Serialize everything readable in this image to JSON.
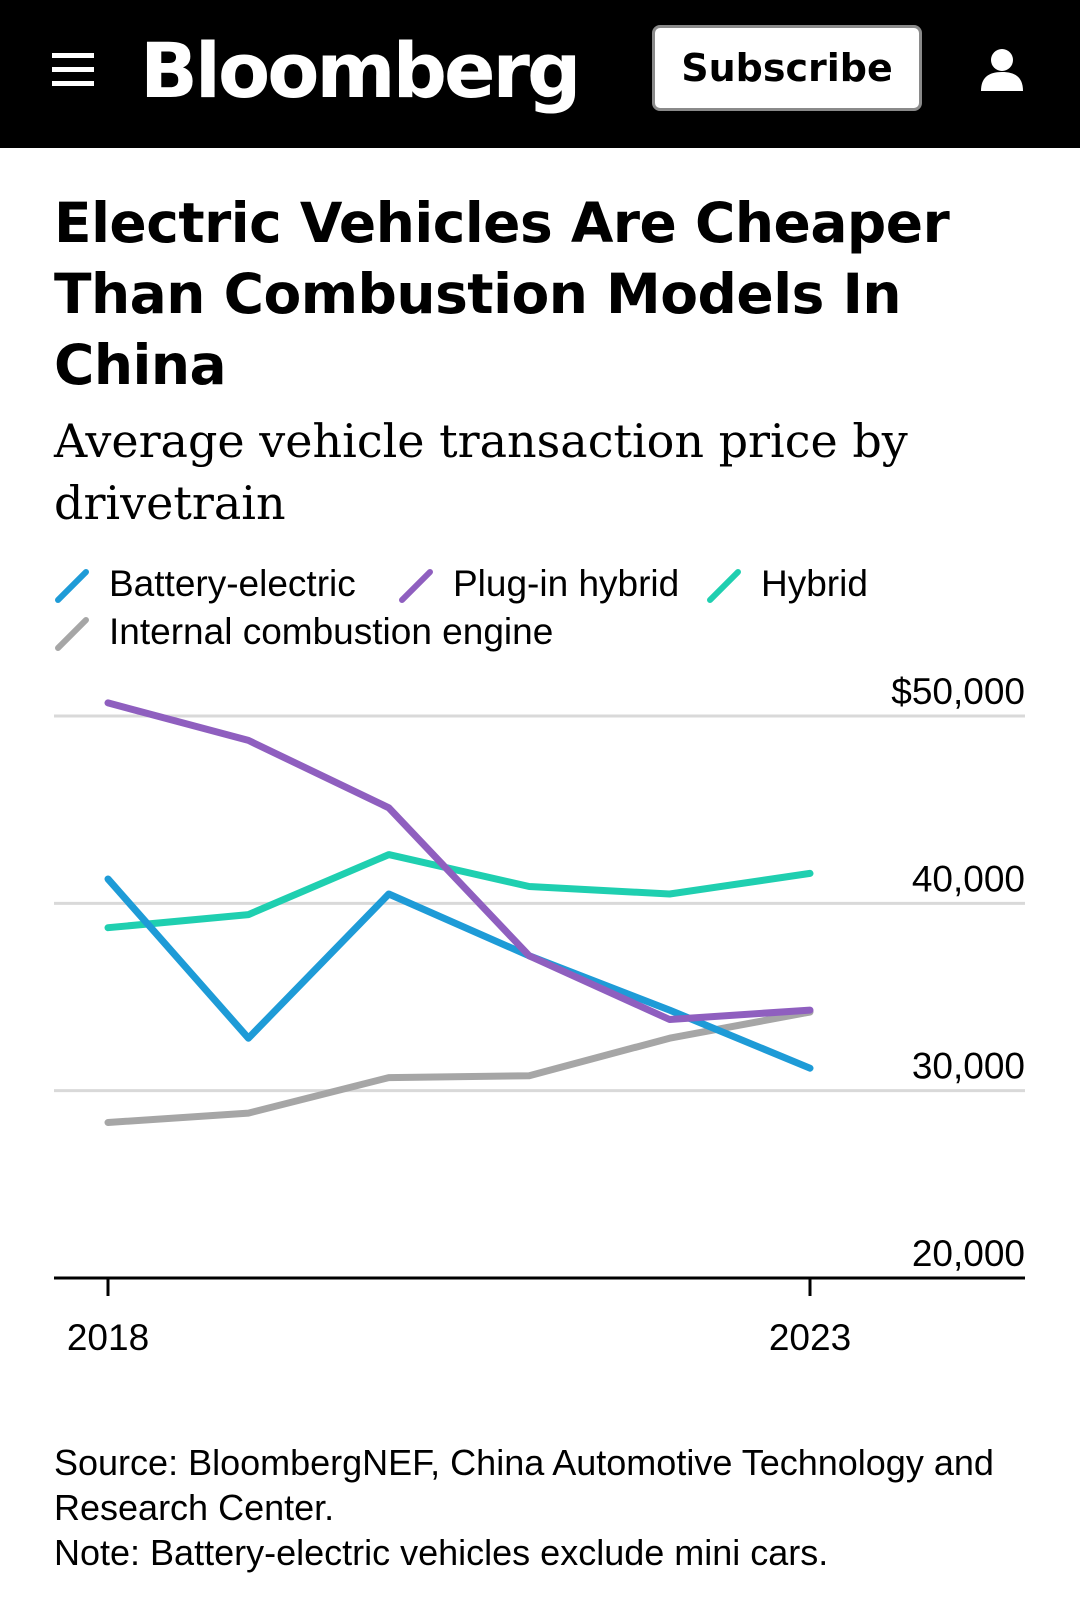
{
  "header": {
    "brand": "Bloomberg",
    "subscribe_label": "Subscribe"
  },
  "article": {
    "title": "Electric Vehicles Are Cheaper Than Combustion Models In China",
    "subtitle": "Average vehicle transaction price by drivetrain",
    "source": "Source: BloombergNEF, China Automotive Technology and Research Center.",
    "note": "Note: Battery-electric vehicles exclude mini cars."
  },
  "chart_data": {
    "type": "line",
    "x": [
      2018,
      2019,
      2020,
      2021,
      2022,
      2023
    ],
    "x_tick_labels": [
      "2018",
      "2023"
    ],
    "y_tick_labels": [
      "$50,000",
      "40,000",
      "30,000",
      "20,000"
    ],
    "y_ticks": [
      50000,
      40000,
      30000,
      20000
    ],
    "ylim": [
      20000,
      50000
    ],
    "grid": true,
    "legend_position": "top",
    "series": [
      {
        "name": "Battery-electric",
        "color": "#1e9bd7",
        "values": [
          41300,
          32800,
          40500,
          37200,
          34300,
          31200
        ]
      },
      {
        "name": "Plug-in hybrid",
        "color": "#8f5fbf",
        "values": [
          50700,
          48700,
          45100,
          37200,
          33800,
          34300
        ]
      },
      {
        "name": "Hybrid",
        "color": "#1fcfb0",
        "values": [
          38700,
          39400,
          42600,
          40900,
          40500,
          41600
        ]
      },
      {
        "name": "Internal combustion engine",
        "color": "#a6a6a6",
        "values": [
          28300,
          28800,
          30700,
          30800,
          32800,
          34200
        ]
      }
    ]
  }
}
